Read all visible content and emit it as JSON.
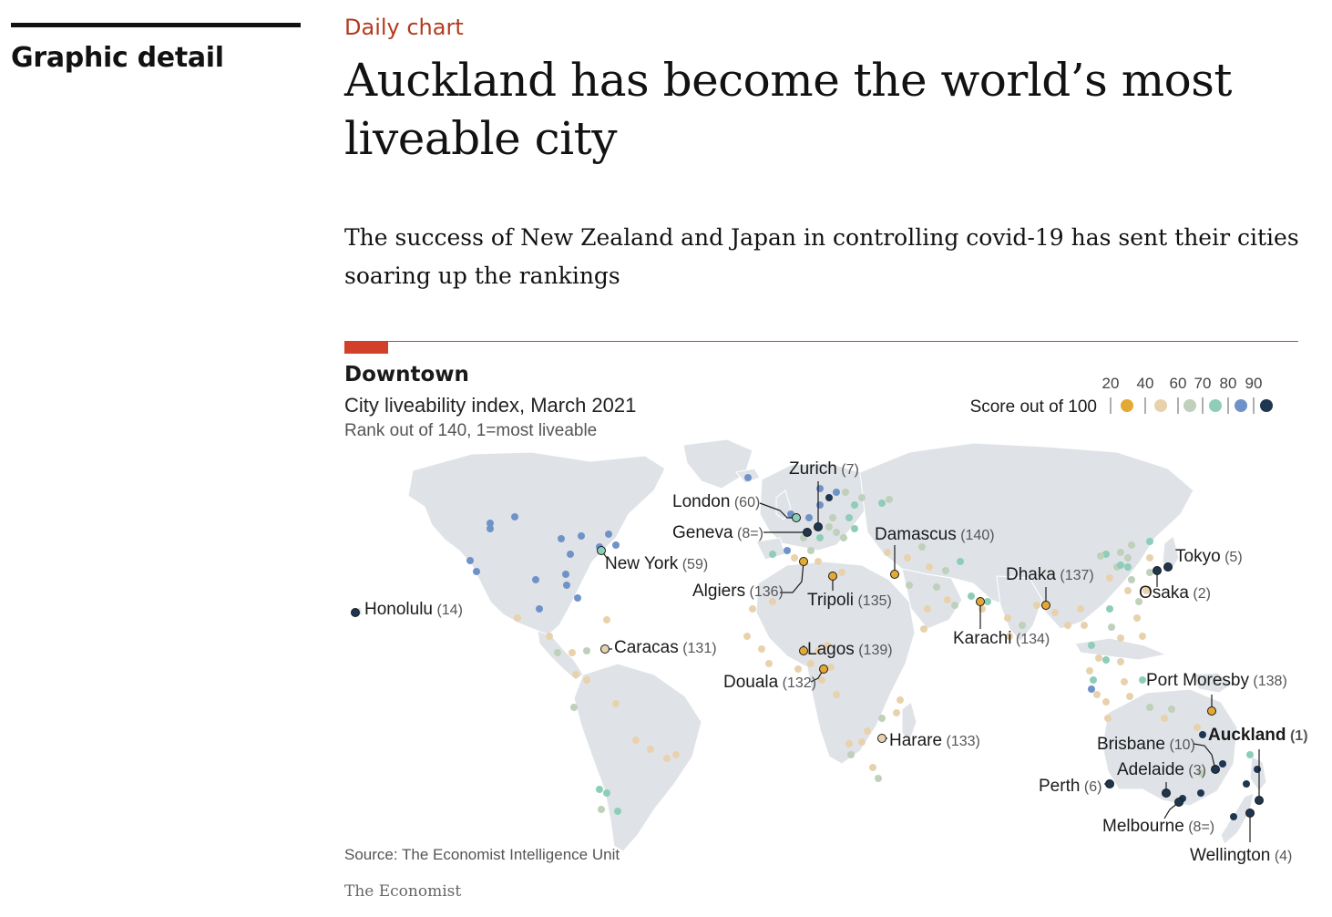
{
  "page": {
    "section_label": "Graphic detail",
    "kicker": "Daily chart",
    "headline": "Auckland has become the world’s most liveable city",
    "standfirst": "The success of New Zealand and Japan in controlling covid-19 has sent their cities soaring up the rankings"
  },
  "chart": {
    "title": "Downtown",
    "subtitle": "City liveability index, March 2021",
    "note": "Rank out of 140, 1=most liveable",
    "source": "Source: The Economist Intelligence Unit",
    "brand": "The Economist",
    "legend": {
      "title": "Score out of 100",
      "ticks": [
        "20",
        "40",
        "60",
        "70",
        "80",
        "90"
      ],
      "bins": [
        {
          "color": "#e3a934"
        },
        {
          "color": "#e8d2ad"
        },
        {
          "color": "#bfd0bb"
        },
        {
          "color": "#8ecdb8"
        },
        {
          "color": "#6f93c8"
        },
        {
          "color": "#1f3651"
        }
      ]
    },
    "land_color": "#dfe3e8",
    "callouts": [
      {
        "name": "Zurich",
        "rank": "(7)",
        "bold": false
      },
      {
        "name": "London",
        "rank": "(60)",
        "bold": false
      },
      {
        "name": "Geneva",
        "rank": "(8=)",
        "bold": false
      },
      {
        "name": "Damascus",
        "rank": "(140)",
        "bold": false
      },
      {
        "name": "New York",
        "rank": "(59)",
        "bold": false
      },
      {
        "name": "Algiers",
        "rank": "(136)",
        "bold": false
      },
      {
        "name": "Tripoli",
        "rank": "(135)",
        "bold": false
      },
      {
        "name": "Dhaka",
        "rank": "(137)",
        "bold": false
      },
      {
        "name": "Tokyo",
        "rank": "(5)",
        "bold": false
      },
      {
        "name": "Osaka",
        "rank": "(2)",
        "bold": false
      },
      {
        "name": "Honolulu",
        "rank": "(14)",
        "bold": false
      },
      {
        "name": "Karachi",
        "rank": "(134)",
        "bold": false
      },
      {
        "name": "Caracas",
        "rank": "(131)",
        "bold": false
      },
      {
        "name": "Lagos",
        "rank": "(139)",
        "bold": false
      },
      {
        "name": "Douala",
        "rank": "(132)",
        "bold": false
      },
      {
        "name": "Port Moresby",
        "rank": "(138)",
        "bold": false
      },
      {
        "name": "Auckland",
        "rank": "(1)",
        "bold": true
      },
      {
        "name": "Brisbane",
        "rank": "(10)",
        "bold": false
      },
      {
        "name": "Harare",
        "rank": "(133)",
        "bold": false
      },
      {
        "name": "Adelaide",
        "rank": "(3)",
        "bold": false
      },
      {
        "name": "Perth",
        "rank": "(6)",
        "bold": false
      },
      {
        "name": "Melbourne",
        "rank": "(8=)",
        "bold": false
      },
      {
        "name": "Wellington",
        "rank": "(4)",
        "bold": false
      }
    ]
  }
}
